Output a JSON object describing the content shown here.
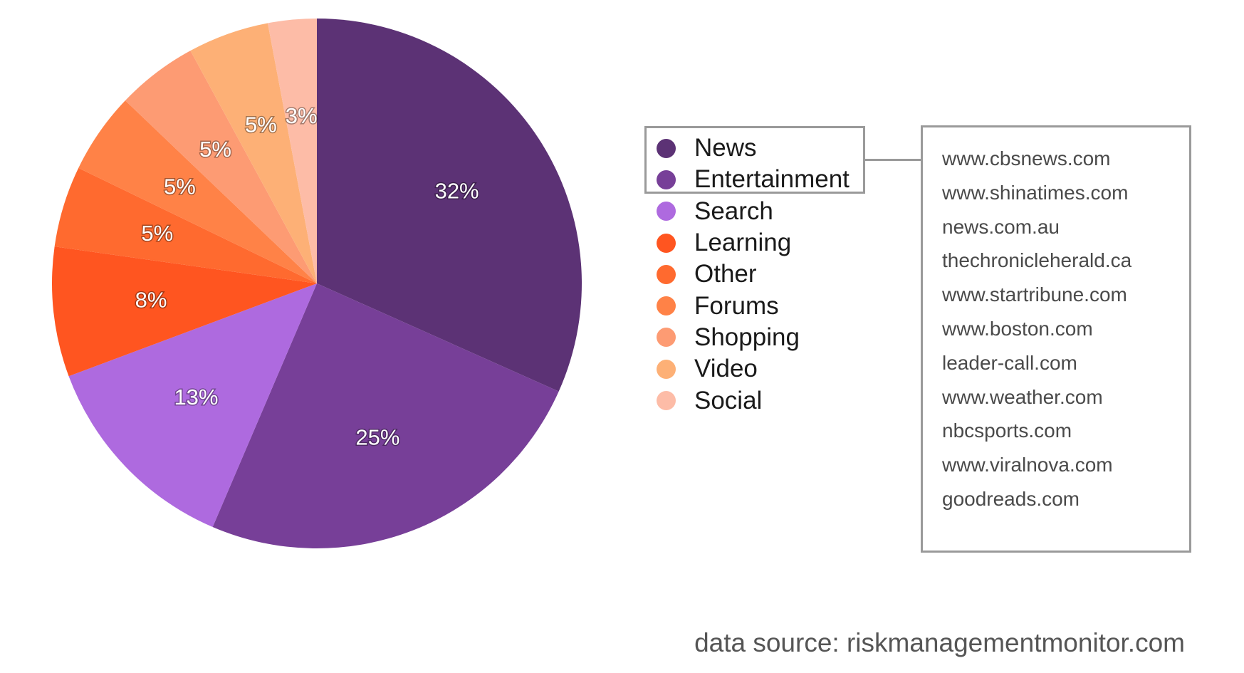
{
  "chart_data": {
    "type": "pie",
    "slices": [
      {
        "label": "News",
        "value": 32,
        "display": "32%",
        "color": "#5c3275"
      },
      {
        "label": "Entertainment",
        "value": 25,
        "display": "25%",
        "color": "#773f98"
      },
      {
        "label": "Search",
        "value": 13,
        "display": "13%",
        "color": "#ae6adf"
      },
      {
        "label": "Learning",
        "value": 8,
        "display": "8%",
        "color": "#ff5520"
      },
      {
        "label": "Other",
        "value": 5,
        "display": "5%",
        "color": "#ff6a2f"
      },
      {
        "label": "Forums",
        "value": 5,
        "display": "5%",
        "color": "#ff8247"
      },
      {
        "label": "Shopping",
        "value": 5,
        "display": "5%",
        "color": "#fd9b73"
      },
      {
        "label": "Video",
        "value": 5,
        "display": "5%",
        "color": "#fdb076"
      },
      {
        "label": "Social",
        "value": 3,
        "display": "3%",
        "color": "#fdbca7"
      }
    ],
    "legend_position": "right",
    "highlighted_categories": [
      "News",
      "Entertainment"
    ]
  },
  "sites": {
    "items": [
      "www.cbsnews.com",
      "www.shinatimes.com",
      "news.com.au",
      "thechronicleherald.ca",
      "www.startribune.com",
      "www.boston.com",
      "leader-call.com",
      "www.weather.com",
      "nbcsports.com",
      "www.viralnova.com",
      "goodreads.com"
    ]
  },
  "footer": {
    "source": "data source: riskmanagementmonitor.com"
  }
}
